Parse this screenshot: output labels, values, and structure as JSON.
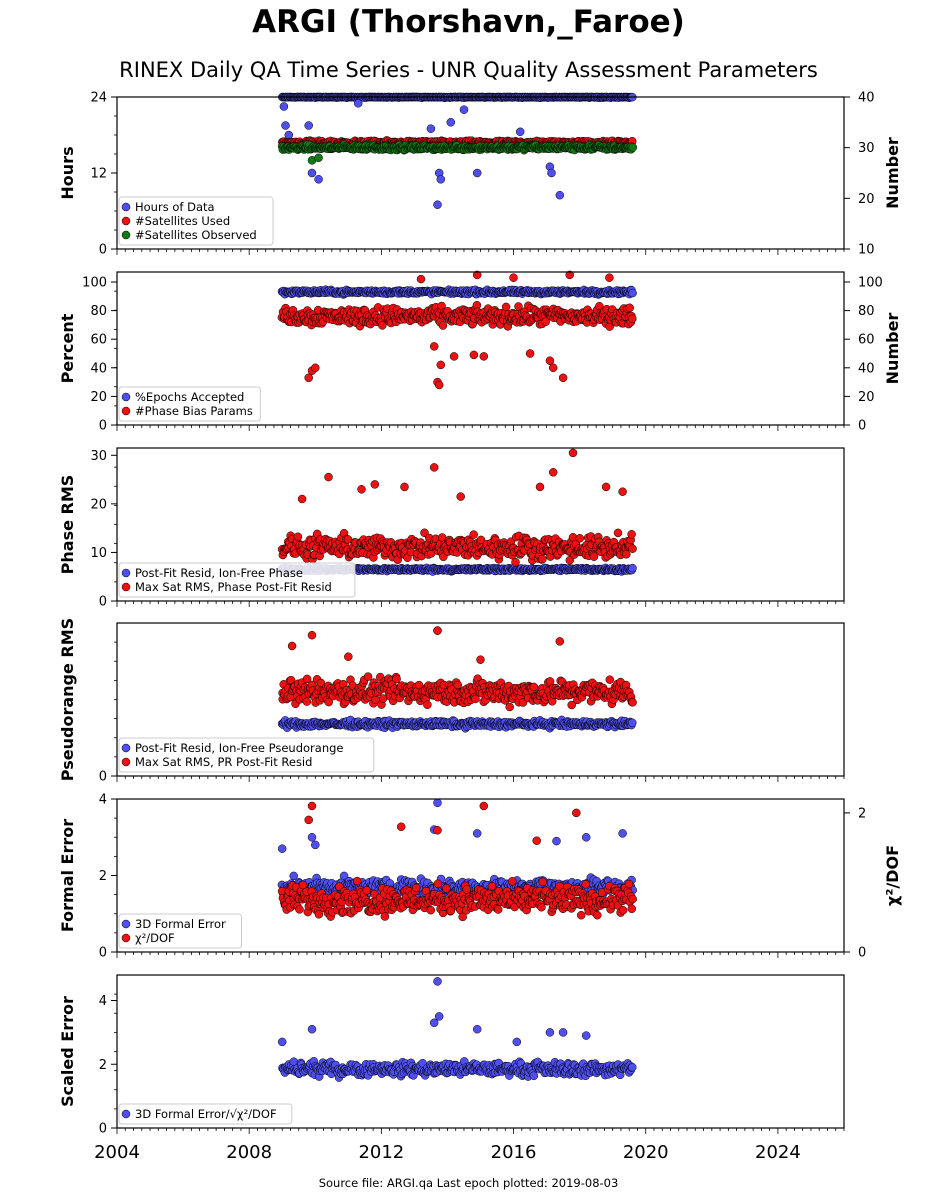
{
  "title": "ARGI (Thorshavn,_Faroe)",
  "subtitle": "RINEX Daily QA Time Series - UNR Quality Assessment Parameters",
  "footer": "Source file: ARGI.qa Last epoch plotted: 2019-08-03",
  "colors": {
    "blue": "#4f4ff0",
    "red": "#ee1111",
    "green": "#127a12",
    "edge": "#000000"
  },
  "chart_data": [
    {
      "type": "scatter",
      "ylabel": "Hours",
      "ylabel_right": "Number",
      "ylim": [
        0,
        24
      ],
      "yticks": [
        "0",
        "12",
        "24"
      ],
      "ylim_right": [
        10,
        40
      ],
      "yticks_right": [
        "10",
        "20",
        "30",
        "40"
      ],
      "legend": [
        "Hours of Data",
        "#Satellites Used",
        "#Satellites Observed"
      ],
      "legend_loc": "lower-left",
      "xlim": [
        2004,
        2026
      ],
      "grid": false,
      "series": [
        {
          "name": "Hours of Data",
          "color": "blue",
          "axis": "left",
          "x_range": [
            2009.0,
            2019.6
          ],
          "y_typical": 24,
          "y_spread": 0.15,
          "outliers": [
            [
              2009.05,
              22.5
            ],
            [
              2009.1,
              19.5
            ],
            [
              2009.2,
              18
            ],
            [
              2009.3,
              16
            ],
            [
              2009.8,
              19.5
            ],
            [
              2009.9,
              12
            ],
            [
              2010.1,
              11
            ],
            [
              2011.3,
              23
            ],
            [
              2013.5,
              19
            ],
            [
              2013.7,
              7
            ],
            [
              2013.75,
              12
            ],
            [
              2013.8,
              11
            ],
            [
              2014.1,
              20
            ],
            [
              2014.5,
              22
            ],
            [
              2014.9,
              12
            ],
            [
              2016.2,
              18.5
            ],
            [
              2017.1,
              13
            ],
            [
              2017.15,
              12
            ],
            [
              2017.4,
              8.5
            ]
          ]
        },
        {
          "name": "#Satellites Used",
          "color": "red",
          "axis": "right",
          "x_range": [
            2009.0,
            2019.6
          ],
          "y_typical": 31,
          "y_spread": 0.5,
          "outliers": []
        },
        {
          "name": "#Satellites Observed",
          "color": "green",
          "axis": "right",
          "x_range": [
            2009.0,
            2019.6
          ],
          "y_typical": 30,
          "y_spread": 0.7,
          "outliers": [
            [
              2009.9,
              27.5
            ],
            [
              2010.1,
              28
            ]
          ]
        }
      ]
    },
    {
      "type": "scatter",
      "ylabel": "Percent",
      "ylabel_right": "Number",
      "ylim": [
        0,
        107
      ],
      "yticks": [
        "0",
        "20",
        "40",
        "60",
        "80",
        "100"
      ],
      "ylim_right": [
        0,
        107
      ],
      "yticks_right": [
        "0",
        "20",
        "40",
        "60",
        "80",
        "100"
      ],
      "legend": [
        "%Epochs Accepted",
        "#Phase Bias Params"
      ],
      "legend_loc": "lower-left",
      "xlim": [
        2004,
        2026
      ],
      "series": [
        {
          "name": "%Epochs Accepted",
          "color": "blue",
          "axis": "left",
          "x_range": [
            2009.0,
            2019.6
          ],
          "y_typical": 93,
          "y_spread": 2,
          "outliers": []
        },
        {
          "name": "#Phase Bias Params",
          "color": "red",
          "axis": "right",
          "x_range": [
            2009.0,
            2019.6
          ],
          "y_typical": 76,
          "y_spread": 9,
          "outliers": [
            [
              2009.9,
              38
            ],
            [
              2010.0,
              40
            ],
            [
              2009.8,
              33
            ],
            [
              2013.6,
              55
            ],
            [
              2013.7,
              30
            ],
            [
              2013.75,
              28
            ],
            [
              2013.8,
              42
            ],
            [
              2014.2,
              48
            ],
            [
              2014.8,
              49
            ],
            [
              2015.1,
              48
            ],
            [
              2016.5,
              50
            ],
            [
              2017.1,
              45
            ],
            [
              2017.2,
              40
            ],
            [
              2017.5,
              33
            ],
            [
              2013.2,
              102
            ],
            [
              2014.9,
              105
            ],
            [
              2016.0,
              103
            ],
            [
              2017.7,
              105
            ],
            [
              2018.9,
              103
            ]
          ]
        }
      ]
    },
    {
      "type": "scatter",
      "ylabel": "Phase RMS",
      "ylim": [
        0,
        31.5
      ],
      "yticks": [
        "0",
        "10",
        "20",
        "30"
      ],
      "legend": [
        "Post-Fit Resid, Ion-Free Phase",
        "Max Sat RMS, Phase Post-Fit Resid"
      ],
      "legend_loc": "lower-left",
      "xlim": [
        2004,
        2026
      ],
      "series": [
        {
          "name": "Post-Fit Resid, Ion-Free Phase",
          "color": "blue",
          "axis": "left",
          "x_range": [
            2009.0,
            2019.6
          ],
          "y_typical": 6.5,
          "y_spread": 0.5,
          "outliers": []
        },
        {
          "name": "Max Sat RMS, Phase Post-Fit Resid",
          "color": "red",
          "axis": "left",
          "x_range": [
            2009.0,
            2019.6
          ],
          "y_typical": 11,
          "y_spread": 3.5,
          "outliers": [
            [
              2009.6,
              21
            ],
            [
              2010.4,
              25.5
            ],
            [
              2011.4,
              23
            ],
            [
              2011.8,
              24
            ],
            [
              2012.7,
              23.5
            ],
            [
              2013.6,
              27.5
            ],
            [
              2014.4,
              21.5
            ],
            [
              2016.8,
              23.5
            ],
            [
              2017.2,
              26.5
            ],
            [
              2017.8,
              30.5
            ],
            [
              2018.8,
              23.5
            ],
            [
              2019.3,
              22.5
            ]
          ]
        }
      ]
    },
    {
      "type": "scatter",
      "ylabel": "Pseudorange RMS",
      "ylim": [
        0,
        1.0
      ],
      "yticks": [
        "0"
      ],
      "legend": [
        "Post-Fit Resid, Ion-Free Pseudorange",
        "Max Sat RMS, PR Post-Fit Resid"
      ],
      "legend_loc": "lower-left",
      "xlim": [
        2004,
        2026
      ],
      "series": [
        {
          "name": "Post-Fit Resid, Ion-Free Pseudorange",
          "color": "blue",
          "axis": "left",
          "x_range": [
            2009.0,
            2019.6
          ],
          "y_typical": 0.34,
          "y_spread": 0.03,
          "outliers": [
            [
              2013.7,
              0.95
            ]
          ]
        },
        {
          "name": "Max Sat RMS, PR Post-Fit Resid",
          "color": "red",
          "axis": "left",
          "x_range": [
            2009.0,
            2019.6
          ],
          "y_typical": 0.55,
          "y_spread": 0.12,
          "outliers": [
            [
              2009.3,
              0.85
            ],
            [
              2009.9,
              0.92
            ],
            [
              2011.0,
              0.78
            ],
            [
              2013.7,
              0.95
            ],
            [
              2015.0,
              0.76
            ],
            [
              2017.4,
              0.88
            ]
          ]
        }
      ]
    },
    {
      "type": "scatter",
      "ylabel": "Formal Error",
      "ylabel_right": "χ²/DOF",
      "ylim": [
        0,
        4
      ],
      "yticks": [
        "0",
        "2",
        "4"
      ],
      "ylim_right": [
        0,
        2.2
      ],
      "yticks_right": [
        "0",
        "2"
      ],
      "legend": [
        "3D Formal Error",
        "χ²/DOF"
      ],
      "legend_loc": "lower-left",
      "xlim": [
        2004,
        2026
      ],
      "series": [
        {
          "name": "3D Formal Error",
          "color": "blue",
          "axis": "left",
          "x_range": [
            2009.0,
            2019.6
          ],
          "y_typical": 1.7,
          "y_spread": 0.3,
          "outliers": [
            [
              2009.0,
              2.7
            ],
            [
              2009.9,
              3.0
            ],
            [
              2010.0,
              2.8
            ],
            [
              2013.6,
              3.2
            ],
            [
              2013.7,
              3.9
            ],
            [
              2014.9,
              3.1
            ],
            [
              2017.3,
              2.9
            ],
            [
              2018.2,
              3.0
            ],
            [
              2019.3,
              3.1
            ]
          ]
        },
        {
          "name": "χ²/DOF",
          "color": "red",
          "axis": "right",
          "x_range": [
            2009.0,
            2019.6
          ],
          "y_typical": 0.75,
          "y_spread": 0.3,
          "outliers": [
            [
              2009.9,
              2.1
            ],
            [
              2009.8,
              1.9
            ],
            [
              2012.6,
              1.8
            ],
            [
              2013.7,
              1.75
            ],
            [
              2015.1,
              2.1
            ],
            [
              2017.9,
              2.0
            ],
            [
              2016.7,
              1.6
            ]
          ]
        }
      ]
    },
    {
      "type": "scatter",
      "ylabel": "Scaled Error",
      "ylim": [
        0,
        4.8
      ],
      "yticks": [
        "0",
        "2",
        "4"
      ],
      "legend": [
        "3D Formal Error/√χ²/DOF"
      ],
      "legend_loc": "lower-left",
      "xlim": [
        2004,
        2026
      ],
      "xticks": [
        "2004",
        "2008",
        "2012",
        "2016",
        "2020",
        "2024"
      ],
      "series": [
        {
          "name": "3D Formal Error/√χ²/DOF",
          "color": "blue",
          "axis": "left",
          "x_range": [
            2009.0,
            2019.6
          ],
          "y_typical": 1.85,
          "y_spread": 0.3,
          "outliers": [
            [
              2009.0,
              2.7
            ],
            [
              2009.9,
              3.1
            ],
            [
              2013.7,
              4.6
            ],
            [
              2013.75,
              3.5
            ],
            [
              2013.6,
              3.3
            ],
            [
              2014.9,
              3.1
            ],
            [
              2016.1,
              2.7
            ],
            [
              2017.1,
              3.0
            ],
            [
              2017.5,
              3.0
            ],
            [
              2018.2,
              2.9
            ]
          ]
        }
      ]
    }
  ]
}
